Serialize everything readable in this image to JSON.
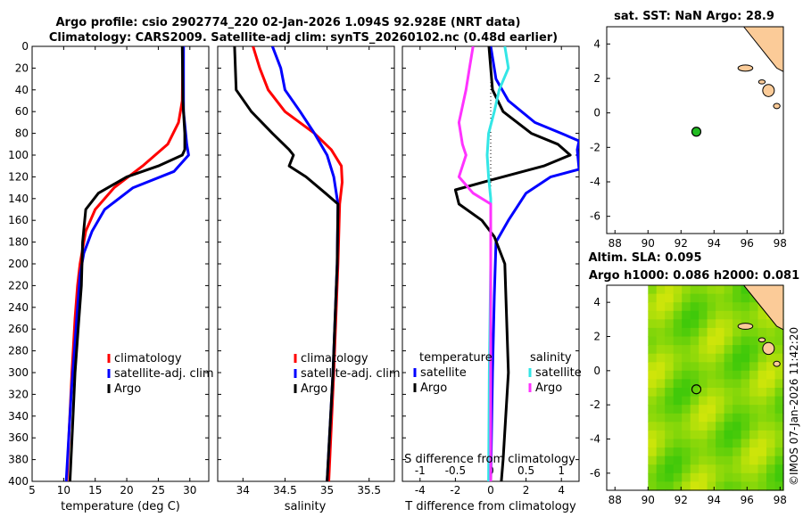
{
  "header": {
    "title_line1": "Argo profile: csio 2902774_220 02-Jan-2026 1.094S 92.928E (NRT data)",
    "title_line2": "Climatology: CARS2009. Satellite-adj clim: synTS_20260102.nc (0.48d earlier)"
  },
  "copyright": "©IMOS 07-Jan-2026 11:42:20",
  "colors": {
    "red": "#ff0000",
    "blue": "#0000ff",
    "black": "#000000",
    "cyan": "#33e6e6",
    "magenta": "#ff33ff",
    "land": "#fbcb98"
  },
  "chart_data": [
    {
      "id": "temperature",
      "type": "line",
      "xlabel": "temperature (deg C)",
      "ylabel": "",
      "xlim": [
        5,
        33
      ],
      "ylim": [
        400,
        0
      ],
      "xticks": [
        5,
        10,
        15,
        20,
        25,
        30
      ],
      "yticks": [
        0,
        20,
        40,
        60,
        80,
        100,
        120,
        140,
        160,
        180,
        200,
        220,
        240,
        260,
        280,
        300,
        320,
        340,
        360,
        380,
        400
      ],
      "legend": [
        "climatology",
        "satellite-adj. clim",
        "Argo"
      ],
      "series": [
        {
          "name": "climatology",
          "color": "red",
          "points": [
            [
              28.9,
              0
            ],
            [
              28.8,
              50
            ],
            [
              28.2,
              70
            ],
            [
              26.5,
              90
            ],
            [
              22.5,
              110
            ],
            [
              18,
              130
            ],
            [
              15,
              150
            ],
            [
              13.5,
              170
            ],
            [
              12.6,
              200
            ],
            [
              12.2,
              220
            ],
            [
              11.8,
              250
            ],
            [
              11.3,
              300
            ],
            [
              10.9,
              350
            ],
            [
              10.5,
              400
            ]
          ]
        },
        {
          "name": "satellite-adj. clim",
          "color": "blue",
          "points": [
            [
              29,
              0
            ],
            [
              29,
              60
            ],
            [
              29.5,
              90
            ],
            [
              29.8,
              100
            ],
            [
              27.5,
              115
            ],
            [
              21,
              130
            ],
            [
              16.5,
              150
            ],
            [
              14.5,
              170
            ],
            [
              13.2,
              190
            ],
            [
              12.6,
              210
            ],
            [
              12.2,
              240
            ],
            [
              11.7,
              280
            ],
            [
              11.2,
              320
            ],
            [
              10.8,
              360
            ],
            [
              10.4,
              400
            ]
          ]
        },
        {
          "name": "Argo",
          "color": "black",
          "points": [
            [
              28.8,
              0
            ],
            [
              28.9,
              50
            ],
            [
              29.2,
              80
            ],
            [
              29.2,
              95
            ],
            [
              28.8,
              100
            ],
            [
              25,
              110
            ],
            [
              20,
              120
            ],
            [
              15.5,
              135
            ],
            [
              13.5,
              150
            ],
            [
              13,
              180
            ],
            [
              12.8,
              220
            ],
            [
              12.3,
              260
            ],
            [
              11.8,
              300
            ],
            [
              11.4,
              350
            ],
            [
              11,
              400
            ]
          ]
        }
      ]
    },
    {
      "id": "salinity",
      "type": "line",
      "xlabel": "salinity",
      "ylabel": "",
      "xlim": [
        33.7,
        35.8
      ],
      "ylim": [
        400,
        0
      ],
      "xticks": [
        34,
        34.5,
        35,
        35.5
      ],
      "legend": [
        "climatology",
        "satellite-adj. clim",
        "Argo"
      ],
      "series": [
        {
          "name": "climatology",
          "color": "red",
          "points": [
            [
              34.12,
              0
            ],
            [
              34.2,
              20
            ],
            [
              34.3,
              40
            ],
            [
              34.5,
              60
            ],
            [
              34.85,
              80
            ],
            [
              35.05,
              95
            ],
            [
              35.17,
              110
            ],
            [
              35.18,
              125
            ],
            [
              35.15,
              145
            ],
            [
              35.13,
              200
            ],
            [
              35.08,
              300
            ],
            [
              35.02,
              400
            ]
          ]
        },
        {
          "name": "satellite-adj. clim",
          "color": "blue",
          "points": [
            [
              34.35,
              0
            ],
            [
              34.45,
              20
            ],
            [
              34.5,
              40
            ],
            [
              34.68,
              60
            ],
            [
              34.85,
              80
            ],
            [
              35,
              100
            ],
            [
              35.08,
              120
            ],
            [
              35.13,
              145
            ],
            [
              35.12,
              200
            ],
            [
              35.07,
              300
            ],
            [
              35,
              400
            ]
          ]
        },
        {
          "name": "Argo",
          "color": "black",
          "points": [
            [
              33.9,
              0
            ],
            [
              33.92,
              40
            ],
            [
              34.1,
              60
            ],
            [
              34.35,
              80
            ],
            [
              34.55,
              95
            ],
            [
              34.6,
              100
            ],
            [
              34.55,
              110
            ],
            [
              34.75,
              120
            ],
            [
              34.98,
              135
            ],
            [
              35.13,
              145
            ],
            [
              35.12,
              200
            ],
            [
              35.07,
              300
            ],
            [
              35,
              400
            ]
          ]
        }
      ]
    },
    {
      "id": "difference",
      "type": "line",
      "xlabel": "T difference from climatology",
      "xlabel_top": "S difference from climatology",
      "ylabel": "",
      "xlim": [
        -5,
        5
      ],
      "xlim_top": [
        -1.25,
        1.25
      ],
      "ylim": [
        400,
        0
      ],
      "xticks": [
        -4,
        -2,
        0,
        2,
        4
      ],
      "xticks_top": [
        -1,
        -0.5,
        0,
        0.5,
        1
      ],
      "legend_headers": [
        "temperature",
        "salinity"
      ],
      "legend": [
        "satellite",
        "Argo",
        "satellite",
        "Argo"
      ],
      "series": [
        {
          "name": "temperature satellite",
          "color": "blue",
          "axis": "T",
          "points": [
            [
              0,
              0
            ],
            [
              0.3,
              30
            ],
            [
              1,
              50
            ],
            [
              2.5,
              70
            ],
            [
              4,
              80
            ],
            [
              5,
              87
            ],
            [
              4.9,
              95
            ],
            [
              5,
              113
            ],
            [
              3.4,
              120
            ],
            [
              2,
              135
            ],
            [
              1,
              160
            ],
            [
              0.3,
              180
            ],
            [
              0.2,
              230
            ],
            [
              0.1,
              300
            ],
            [
              0,
              400
            ]
          ]
        },
        {
          "name": "temperature Argo",
          "color": "black",
          "axis": "T",
          "points": [
            [
              -0.1,
              0
            ],
            [
              0.1,
              40
            ],
            [
              0.7,
              60
            ],
            [
              2.3,
              80
            ],
            [
              3.8,
              90
            ],
            [
              4.5,
              100
            ],
            [
              3,
              110
            ],
            [
              0,
              123
            ],
            [
              -2,
              132
            ],
            [
              -1.8,
              145
            ],
            [
              -0.5,
              160
            ],
            [
              0.2,
              175
            ],
            [
              0.8,
              200
            ],
            [
              1,
              300
            ],
            [
              0.7,
              380
            ],
            [
              0.6,
              400
            ]
          ]
        },
        {
          "name": "salinity satellite",
          "color": "cyan",
          "axis": "S",
          "points": [
            [
              0.2,
              0
            ],
            [
              0.25,
              20
            ],
            [
              0.12,
              40
            ],
            [
              0.05,
              60
            ],
            [
              -0.03,
              80
            ],
            [
              -0.05,
              100
            ],
            [
              -0.03,
              120
            ],
            [
              0,
              140
            ],
            [
              0,
              200
            ],
            [
              -0.02,
              300
            ],
            [
              -0.03,
              400
            ]
          ]
        },
        {
          "name": "salinity Argo",
          "color": "magenta",
          "axis": "S",
          "points": [
            [
              -0.25,
              0
            ],
            [
              -0.3,
              20
            ],
            [
              -0.35,
              40
            ],
            [
              -0.45,
              70
            ],
            [
              -0.4,
              90
            ],
            [
              -0.35,
              100
            ],
            [
              -0.45,
              120
            ],
            [
              -0.25,
              135
            ],
            [
              0,
              145
            ],
            [
              0,
              200
            ],
            [
              0,
              400
            ]
          ]
        }
      ]
    },
    {
      "id": "sst_map",
      "type": "scatter",
      "title": "sat. SST: NaN Argo: 28.9",
      "xlim": [
        87.5,
        98.2
      ],
      "ylim": [
        -7,
        5
      ],
      "xticks": [
        88,
        90,
        92,
        94,
        96,
        98
      ],
      "yticks": [
        -6,
        -4,
        -2,
        0,
        2,
        4
      ],
      "float_position": [
        92.93,
        -1.09
      ],
      "marker_color": "#22bb22"
    },
    {
      "id": "sla_map",
      "type": "heatmap",
      "title_line1": "Altim. SLA: 0.095",
      "title_line2": "Argo h1000: 0.086 h2000: 0.081",
      "xlim": [
        87.5,
        98.2
      ],
      "ylim": [
        -7,
        5
      ],
      "xticks": [
        88,
        90,
        92,
        94,
        96,
        98
      ],
      "yticks": [
        -6,
        -4,
        -2,
        0,
        2,
        4
      ],
      "data_xlim": [
        90,
        98.2
      ],
      "float_position": [
        92.93,
        -1.09
      ]
    }
  ]
}
